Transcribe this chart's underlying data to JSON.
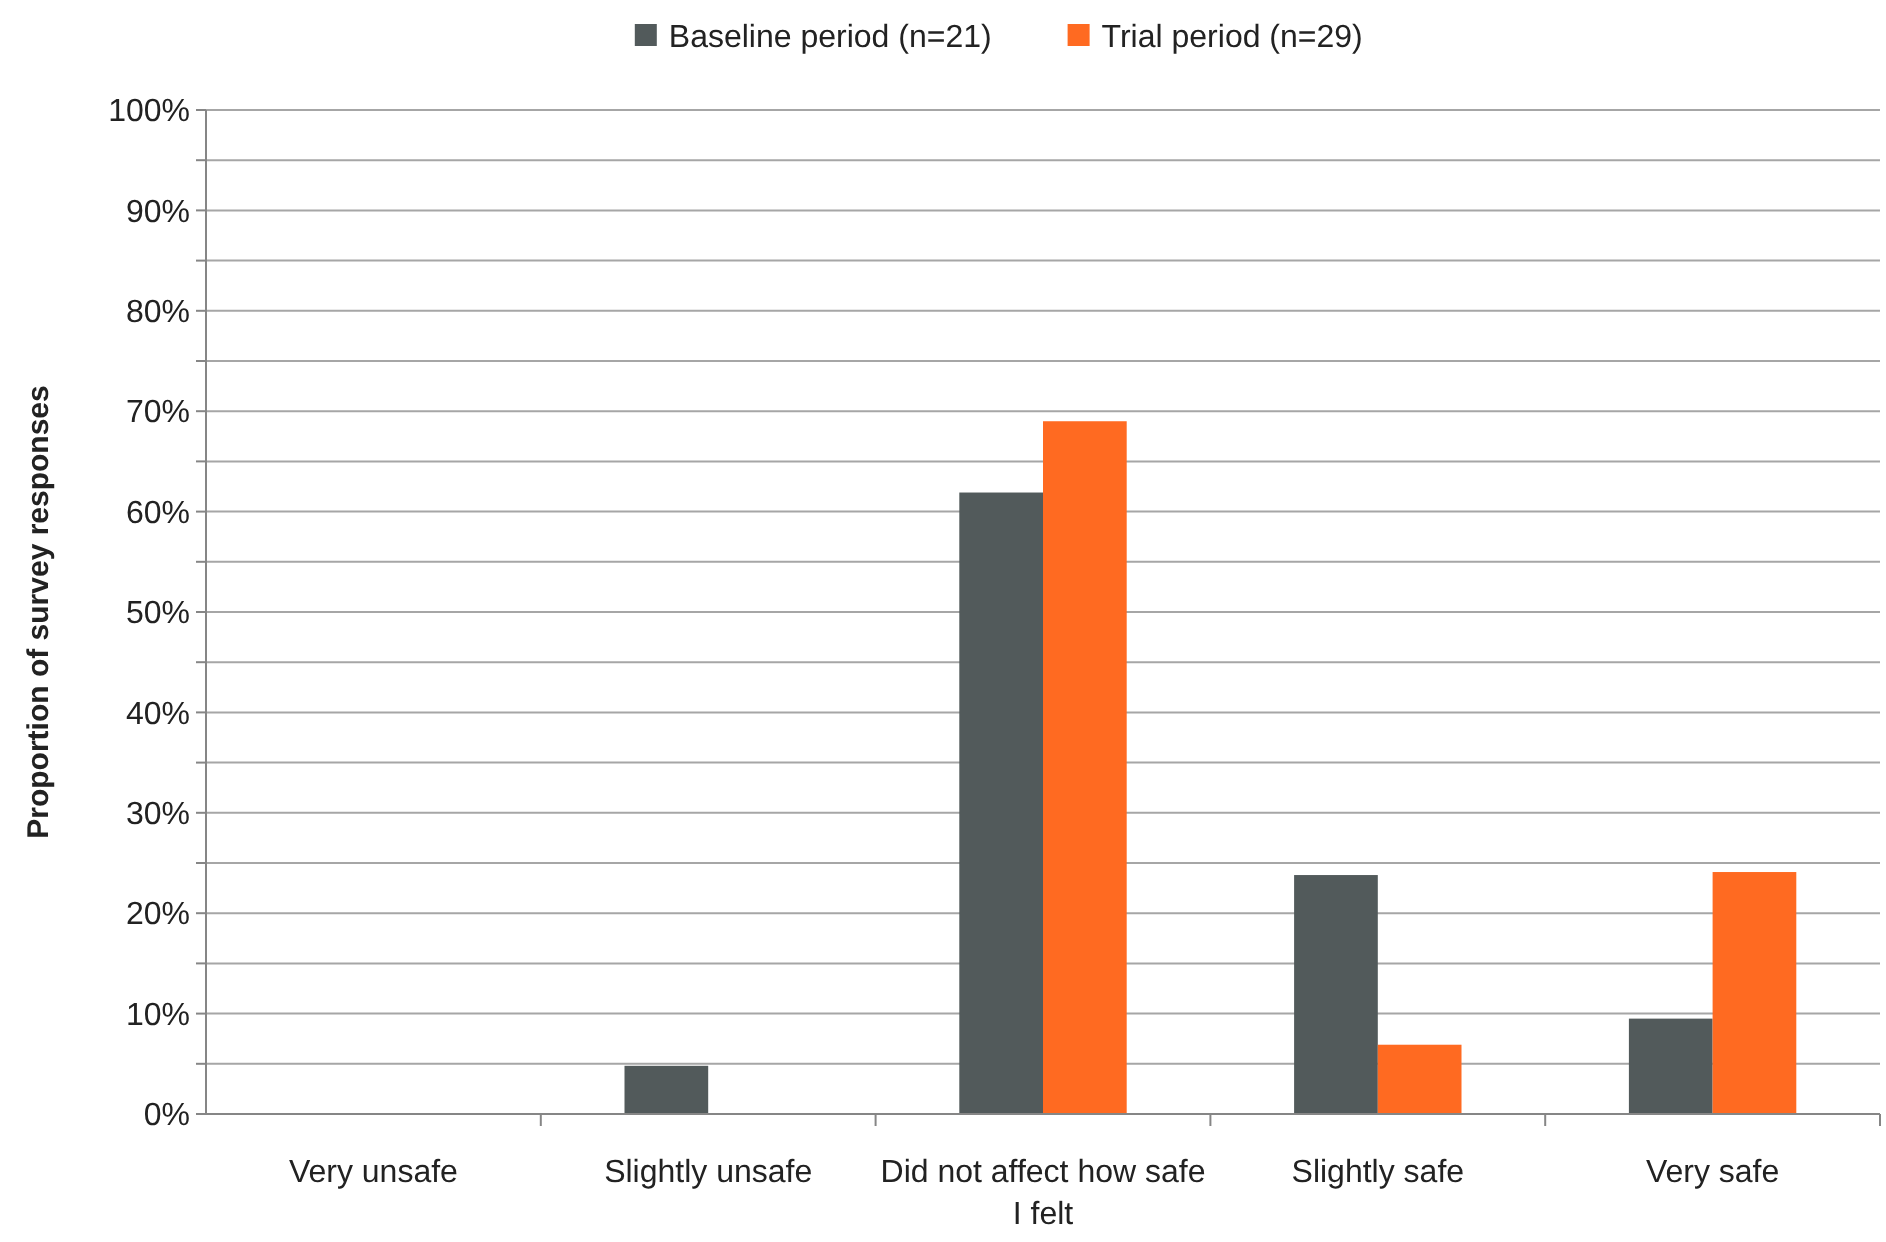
{
  "chart_data": {
    "type": "bar",
    "ylabel": "Proportion of survey responses",
    "categories": [
      "Very unsafe",
      "Slightly unsafe",
      "Did not affect how safe I felt",
      "Slightly safe",
      "Very safe"
    ],
    "series": [
      {
        "name": "Baseline period (n=21)",
        "color": "#525a5b",
        "values": [
          0,
          4.8,
          61.9,
          23.8,
          9.5
        ]
      },
      {
        "name": "Trial period (n=29)",
        "color": "#ff6a21",
        "values": [
          0,
          0,
          69.0,
          6.9,
          24.1
        ]
      }
    ],
    "ylim": [
      0,
      100
    ],
    "yticks": [
      {
        "value": 0,
        "label": "0%"
      },
      {
        "value": 5,
        "label": null
      },
      {
        "value": 10,
        "label": "10%"
      },
      {
        "value": 15,
        "label": null
      },
      {
        "value": 20,
        "label": "20%"
      },
      {
        "value": 25,
        "label": null
      },
      {
        "value": 30,
        "label": "30%"
      },
      {
        "value": 35,
        "label": null
      },
      {
        "value": 40,
        "label": "40%"
      },
      {
        "value": 45,
        "label": null
      },
      {
        "value": 50,
        "label": "50%"
      },
      {
        "value": 55,
        "label": null
      },
      {
        "value": 60,
        "label": "60%"
      },
      {
        "value": 65,
        "label": null
      },
      {
        "value": 70,
        "label": "70%"
      },
      {
        "value": 75,
        "label": null
      },
      {
        "value": 80,
        "label": "80%"
      },
      {
        "value": 85,
        "label": null
      },
      {
        "value": 90,
        "label": "90%"
      },
      {
        "value": 95,
        "label": null
      },
      {
        "value": 100,
        "label": "100%"
      }
    ],
    "grid": true,
    "legend": "top"
  }
}
